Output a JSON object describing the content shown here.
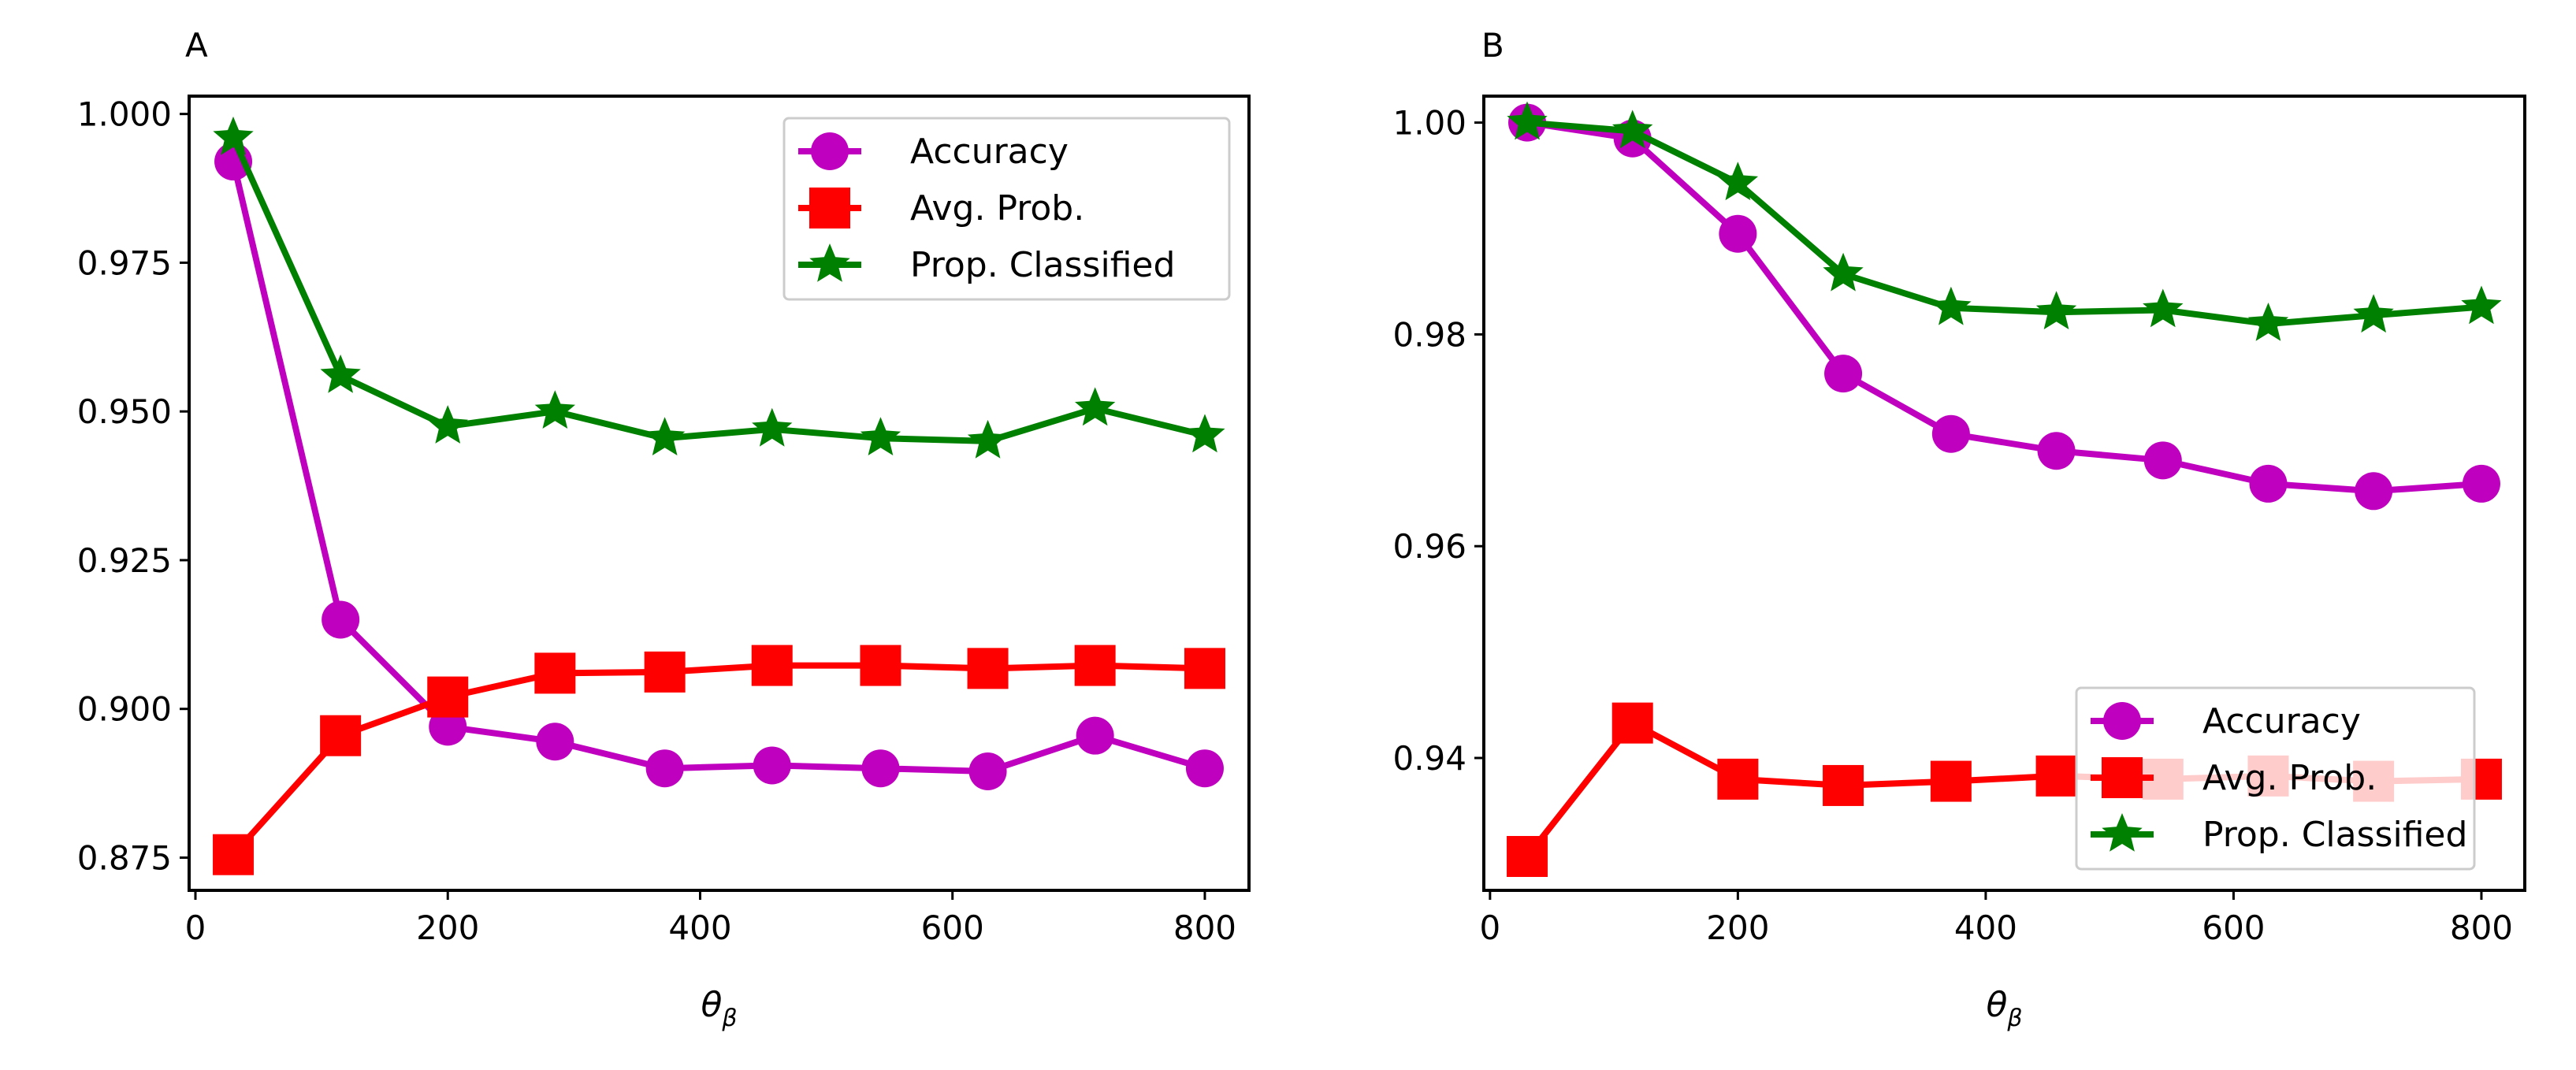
{
  "figure": {
    "panels": [
      "A",
      "B"
    ]
  },
  "colors": {
    "accuracy": "#bf00bf",
    "avg_prob": "#ff0000",
    "prop_classified": "#008000"
  },
  "chart_data": [
    {
      "panel_label": "A",
      "type": "line",
      "title": "",
      "xlabel": "θ",
      "xlabel_subscript": "β",
      "ylabel": "",
      "xlim": [
        -5,
        835
      ],
      "ylim": [
        0.8695,
        1.003
      ],
      "xticks": [
        0,
        200,
        400,
        600,
        800
      ],
      "xtick_labels": [
        "0",
        "200",
        "400",
        "600",
        "800"
      ],
      "yticks": [
        0.875,
        0.9,
        0.925,
        0.95,
        0.975,
        1.0
      ],
      "ytick_labels": [
        "0.875",
        "0.900",
        "0.925",
        "0.950",
        "0.975",
        "1.000"
      ],
      "legend_position": "top-right",
      "x": [
        30,
        115,
        200,
        285,
        372,
        457,
        543,
        628,
        713,
        800
      ],
      "series": [
        {
          "name": "Accuracy",
          "marker": "circle",
          "color_key": "accuracy",
          "values": [
            0.992,
            0.915,
            0.897,
            0.8945,
            0.89,
            0.8905,
            0.89,
            0.8895,
            0.8955,
            0.89
          ]
        },
        {
          "name": "Avg. Prob.",
          "marker": "square",
          "color_key": "avg_prob",
          "values": [
            0.8755,
            0.8955,
            0.902,
            0.906,
            0.9062,
            0.9073,
            0.9073,
            0.9068,
            0.9073,
            0.9068
          ]
        },
        {
          "name": "Prop. Classified",
          "marker": "star",
          "color_key": "prop_classified",
          "values": [
            0.996,
            0.956,
            0.9475,
            0.95,
            0.9455,
            0.947,
            0.9455,
            0.945,
            0.9505,
            0.946
          ]
        }
      ]
    },
    {
      "panel_label": "B",
      "type": "line",
      "title": "",
      "xlabel": "θ",
      "xlabel_subscript": "β",
      "ylabel": "",
      "xlim": [
        -5,
        835
      ],
      "ylim": [
        0.9275,
        1.0025
      ],
      "xticks": [
        0,
        200,
        400,
        600,
        800
      ],
      "xtick_labels": [
        "0",
        "200",
        "400",
        "600",
        "800"
      ],
      "yticks": [
        0.94,
        0.96,
        0.98,
        1.0
      ],
      "ytick_labels": [
        "0.94",
        "0.96",
        "0.98",
        "1.00"
      ],
      "legend_position": "bottom-right",
      "x": [
        30,
        115,
        200,
        285,
        372,
        457,
        543,
        628,
        713,
        800
      ],
      "series": [
        {
          "name": "Accuracy",
          "marker": "circle",
          "color_key": "accuracy",
          "values": [
            1.0,
            0.9985,
            0.9895,
            0.9763,
            0.9706,
            0.969,
            0.9681,
            0.9659,
            0.9652,
            0.9659
          ]
        },
        {
          "name": "Avg. Prob.",
          "marker": "square",
          "color_key": "avg_prob",
          "values": [
            0.9307,
            0.9433,
            0.938,
            0.9374,
            0.9378,
            0.9383,
            0.938,
            0.9383,
            0.9378,
            0.938
          ]
        },
        {
          "name": "Prop. Classified",
          "marker": "star",
          "color_key": "prop_classified",
          "values": [
            1.0,
            0.9992,
            0.9943,
            0.9857,
            0.9825,
            0.9821,
            0.9823,
            0.981,
            0.9818,
            0.9826
          ]
        }
      ]
    }
  ]
}
